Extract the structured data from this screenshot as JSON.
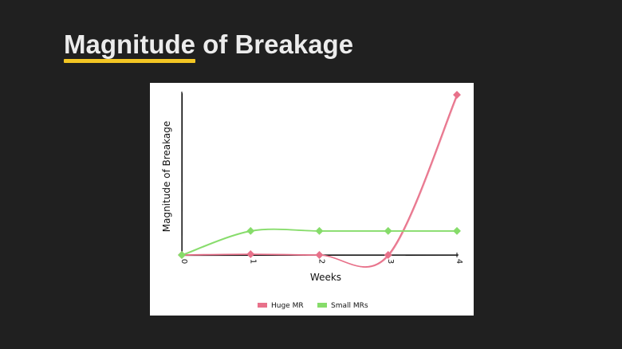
{
  "slide": {
    "title_highlight": "Magnitude",
    "title_rest": " of Breakage",
    "accent_color": "#f3c623"
  },
  "chart_data": {
    "type": "line",
    "title": "",
    "xlabel": "Weeks",
    "ylabel": "Magnitude of Breakage",
    "x": [
      0,
      1,
      2,
      3,
      4
    ],
    "x_tick_labels": [
      "0",
      "1",
      "2",
      "3",
      "4"
    ],
    "xlim": [
      0,
      4
    ],
    "ylim": [
      0,
      10
    ],
    "grid": false,
    "legend_position": "bottom-center",
    "series": [
      {
        "name": "Huge MR",
        "color": "#e8718a",
        "values": [
          0,
          0.05,
          0,
          0,
          10
        ]
      },
      {
        "name": "Small MRs",
        "color": "#86dc6a",
        "values": [
          0,
          1.5,
          1.5,
          1.5,
          1.5
        ]
      }
    ]
  }
}
